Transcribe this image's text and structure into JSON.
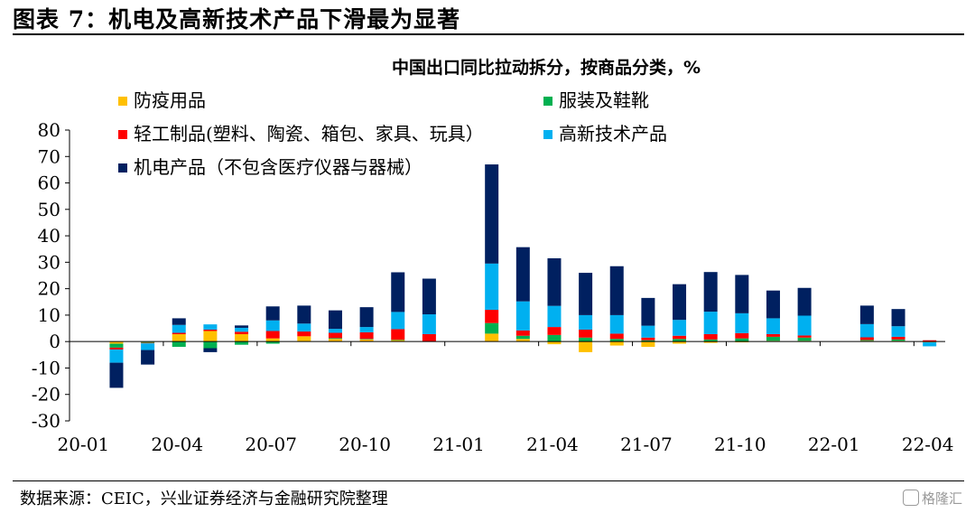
{
  "figure": {
    "title": "图表 7：机电及高新技术产品下滑最为显著",
    "source": "数据来源：CEIC，兴业证券经济与金融研究院整理",
    "watermark": "格隆汇"
  },
  "chart_data": {
    "type": "bar",
    "stacked": true,
    "title": "中国出口同比拉动拆分，按商品分类，%",
    "xlabel": "",
    "ylabel": "",
    "ylim": [
      -30,
      80
    ],
    "yticks": [
      -30,
      -20,
      -10,
      0,
      10,
      20,
      30,
      40,
      50,
      60,
      70,
      80
    ],
    "categories": [
      "20-01",
      "20-02",
      "20-03",
      "20-04",
      "20-05",
      "20-06",
      "20-07",
      "20-08",
      "20-09",
      "20-10",
      "20-11",
      "20-12",
      "21-01",
      "21-02",
      "21-03",
      "21-04",
      "21-05",
      "21-06",
      "21-07",
      "21-08",
      "21-09",
      "21-10",
      "21-11",
      "21-12",
      "22-01",
      "22-02",
      "22-03",
      "22-04"
    ],
    "x_tick_labels": [
      "20-01",
      "20-04",
      "20-07",
      "20-10",
      "21-01",
      "21-04",
      "21-07",
      "21-10",
      "22-01",
      "22-04"
    ],
    "legend_placement": "top-left",
    "grid": false,
    "series": [
      {
        "name": "防疫用品",
        "color": "#FFC000",
        "values": [
          null,
          -0.8,
          -0.2,
          2.8,
          4.0,
          2.8,
          1.2,
          2.0,
          1.0,
          0.8,
          0.6,
          null,
          null,
          3.0,
          1.0,
          -1.0,
          -4.0,
          -1.5,
          -2.0,
          -0.8,
          -0.5,
          -0.3,
          0.3,
          0.3,
          null,
          0.3,
          0.3,
          -0.3
        ]
      },
      {
        "name": "服装及鞋靴",
        "color": "#00B050",
        "values": [
          null,
          -1.5,
          -0.3,
          -2.0,
          -2.5,
          -1.2,
          -0.8,
          0.0,
          0.3,
          0.2,
          0.1,
          null,
          null,
          4.0,
          1.2,
          2.5,
          1.5,
          1.0,
          0.5,
          1.0,
          0.8,
          1.2,
          1.5,
          1.2,
          null,
          0.3,
          0.5,
          0.0
        ]
      },
      {
        "name": "轻工制品(塑料、陶瓷、箱包、家具、玩具）",
        "color": "#FF0000",
        "values": [
          null,
          -0.7,
          -0.2,
          0.5,
          0.5,
          0.9,
          2.8,
          1.8,
          2.0,
          2.5,
          4.0,
          2.8,
          null,
          5.0,
          2.0,
          3.0,
          3.0,
          2.0,
          1.0,
          1.2,
          2.0,
          2.0,
          1.0,
          0.8,
          null,
          1.0,
          1.0,
          0.5
        ]
      },
      {
        "name": "高新技术产品",
        "color": "#00B0F0",
        "values": [
          null,
          -5.0,
          -2.5,
          3.0,
          2.0,
          1.5,
          4.0,
          3.0,
          1.5,
          2.0,
          6.5,
          7.5,
          null,
          17.5,
          11.0,
          8.0,
          5.5,
          7.0,
          4.5,
          6.0,
          8.5,
          7.5,
          6.0,
          7.5,
          null,
          5.0,
          4.0,
          -1.5
        ]
      },
      {
        "name": "机电产品（不包含医疗仪器与器械）",
        "color": "#002060",
        "values": [
          null,
          -9.5,
          -5.5,
          2.5,
          -1.5,
          0.9,
          5.3,
          6.8,
          7.0,
          7.5,
          15.0,
          13.5,
          null,
          37.5,
          20.5,
          18.0,
          16.0,
          18.5,
          10.5,
          13.5,
          15.0,
          14.5,
          10.5,
          10.5,
          null,
          7.0,
          6.5,
          0.0
        ]
      }
    ]
  }
}
